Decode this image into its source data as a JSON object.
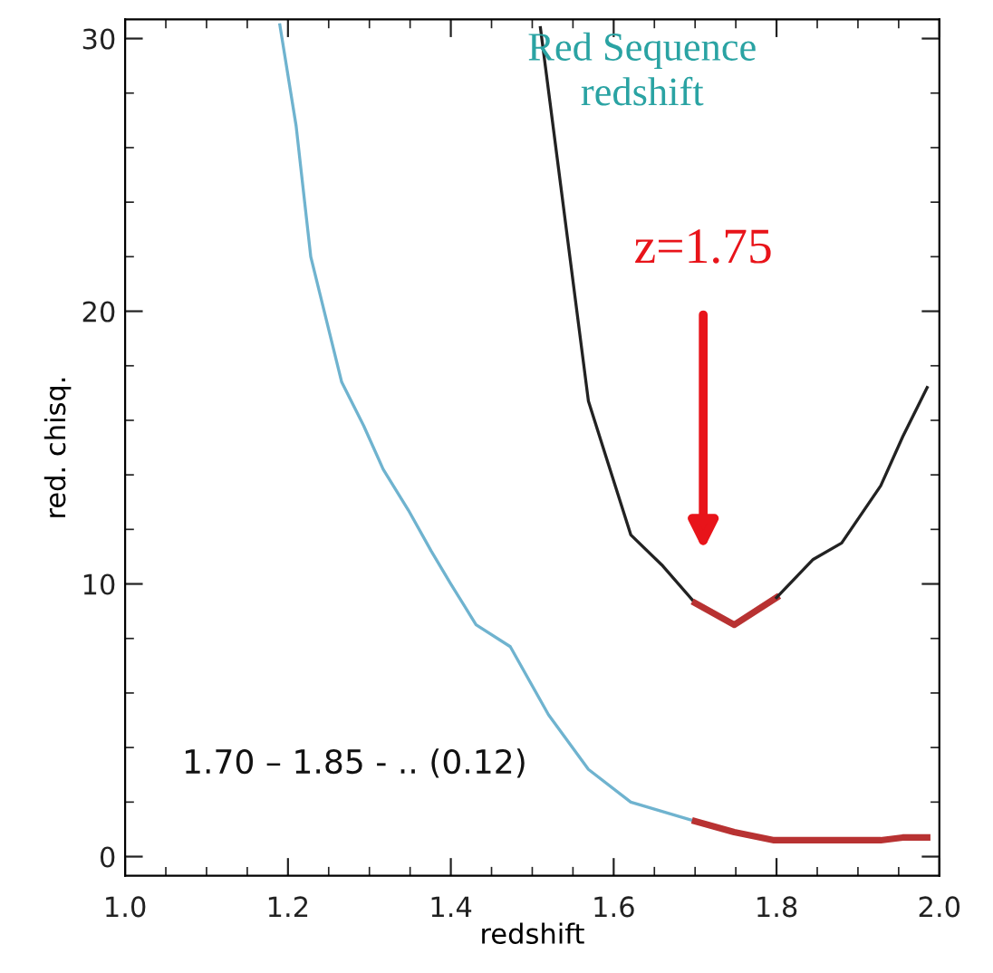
{
  "chart_data": {
    "type": "line",
    "xlabel": "redshift",
    "ylabel": "red. chisq.",
    "xlim": [
      1.0,
      2.0
    ],
    "xticks": [
      {
        "value": 1.0,
        "label": "1.0"
      },
      1.2,
      1.4,
      1.6,
      1.8,
      {
        "value": 2.0,
        "label": "2.0"
      }
    ],
    "ylim": [
      -0.7,
      30.7
    ],
    "yticks": [
      0,
      10,
      20,
      30
    ],
    "grid": false,
    "legend": false,
    "marker": "none",
    "line_style": "solid",
    "series": [
      {
        "color": "#222222",
        "x": [
          1.51,
          1.535,
          1.569,
          1.621,
          1.659,
          1.7
        ],
        "values": [
          30.4,
          24.6,
          16.7,
          11.8,
          10.7,
          9.3
        ]
      },
      {
        "color": "#b83232",
        "x": [
          1.7,
          1.748,
          1.8
        ],
        "values": [
          9.3,
          8.5,
          9.5
        ]
      },
      {
        "color": "#222222",
        "x": [
          1.8,
          1.845,
          1.88,
          1.928,
          1.955,
          1.985
        ],
        "values": [
          9.5,
          10.9,
          11.5,
          13.6,
          15.4,
          17.2
        ]
      },
      {
        "color": "#6fb3cf",
        "x": [
          1.19,
          1.21,
          1.228,
          1.266,
          1.293,
          1.317,
          1.348,
          1.376,
          1.4,
          1.431,
          1.473,
          1.52,
          1.569,
          1.621,
          1.7
        ],
        "values": [
          30.5,
          26.8,
          22.0,
          17.4,
          15.8,
          14.2,
          12.7,
          11.2,
          10.0,
          8.5,
          7.7,
          5.2,
          3.2,
          2.0,
          1.3
        ]
      },
      {
        "color": "#b83232",
        "x": [
          1.7,
          1.748,
          1.797,
          1.852,
          1.928,
          1.955,
          1.985
        ],
        "values": [
          1.3,
          0.9,
          0.6,
          0.6,
          0.6,
          0.7,
          0.7
        ]
      }
    ],
    "annotations": [
      "Red Sequence\nredshift",
      "z=1.75",
      "1.70 – 1.85 - .. (0.12)"
    ]
  }
}
